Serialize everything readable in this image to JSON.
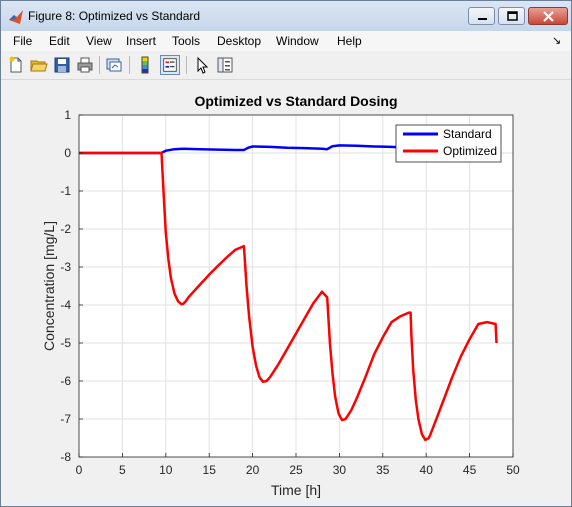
{
  "window": {
    "title": "Figure 8: Optimized vs Standard",
    "controls": [
      "minimize",
      "maximize",
      "close"
    ],
    "icons": {
      "app": "matlab-logo-icon",
      "minimize": "minimize-icon",
      "maximize": "maximize-icon",
      "close": "close-icon"
    }
  },
  "menubar": {
    "items": [
      "File",
      "Edit",
      "View",
      "Insert",
      "Tools",
      "Desktop",
      "Window",
      "Help"
    ],
    "dock_arrow": "↘"
  },
  "toolbar": {
    "buttons": [
      {
        "name": "new-figure-icon"
      },
      {
        "name": "open-file-icon"
      },
      {
        "name": "save-icon"
      },
      {
        "name": "print-icon"
      },
      {
        "name": "link-plot-icon"
      },
      {
        "name": "insert-colorbar-icon"
      },
      {
        "name": "insert-legend-icon",
        "pressed": true
      },
      {
        "name": "pointer-icon"
      },
      {
        "name": "property-inspector-icon"
      }
    ]
  },
  "chart_data": {
    "type": "line",
    "title": "Optimized vs Standard Dosing",
    "xlabel": "Time [h]",
    "ylabel": "Concentration [mg/L]",
    "xlim": [
      0,
      50
    ],
    "ylim": [
      -8,
      1
    ],
    "xticks": [
      0,
      5,
      10,
      15,
      20,
      25,
      30,
      35,
      40,
      45,
      50
    ],
    "yticks": [
      1,
      0,
      -1,
      -2,
      -3,
      -4,
      -5,
      -6,
      -7,
      -8
    ],
    "grid": true,
    "legend_position": "top-right",
    "series": [
      {
        "name": "Standard",
        "color": "#0000ff",
        "x": [
          0,
          9.5,
          10,
          11,
          12,
          14,
          16,
          18,
          19,
          19.5,
          20,
          22,
          24,
          26,
          28,
          28.6,
          29.2,
          30,
          32,
          34,
          36,
          38,
          38.4,
          38.8
        ],
        "y": [
          0,
          0,
          0.06,
          0.1,
          0.11,
          0.1,
          0.09,
          0.08,
          0.08,
          0.14,
          0.17,
          0.16,
          0.14,
          0.13,
          0.11,
          0.1,
          0.18,
          0.2,
          0.19,
          0.17,
          0.16,
          0.14,
          0.13,
          0.13
        ]
      },
      {
        "name": "Optimized",
        "color": "#ff0000",
        "x": [
          0,
          9.5,
          9.6,
          9.8,
          10,
          10.3,
          10.6,
          11,
          11.4,
          11.8,
          12,
          12.3,
          12.6,
          13,
          14,
          15,
          16,
          17,
          18,
          19,
          19.1,
          19.3,
          19.6,
          20,
          20.4,
          20.8,
          21.2,
          21.6,
          22,
          23,
          24,
          25,
          26,
          27,
          28,
          28.6,
          28.7,
          28.9,
          29.2,
          29.5,
          29.9,
          30.3,
          30.7,
          31,
          31.4,
          32,
          33,
          34,
          35,
          36,
          37,
          38,
          38.2,
          38.3,
          38.5,
          38.8,
          39.1,
          39.5,
          39.9,
          40.3,
          40.5,
          41,
          42,
          43,
          44,
          45,
          46,
          47,
          48,
          48.1
        ],
        "y": [
          0,
          0,
          -0.4,
          -1.3,
          -2.1,
          -2.8,
          -3.3,
          -3.7,
          -3.9,
          -3.98,
          -3.97,
          -3.9,
          -3.8,
          -3.7,
          -3.45,
          -3.2,
          -2.97,
          -2.75,
          -2.55,
          -2.45,
          -2.8,
          -3.5,
          -4.3,
          -5.1,
          -5.6,
          -5.9,
          -6.02,
          -6.0,
          -5.9,
          -5.55,
          -5.15,
          -4.75,
          -4.35,
          -3.95,
          -3.65,
          -3.8,
          -4.2,
          -5.0,
          -5.8,
          -6.4,
          -6.85,
          -7.03,
          -7.0,
          -6.9,
          -6.75,
          -6.45,
          -5.9,
          -5.3,
          -4.85,
          -4.45,
          -4.3,
          -4.2,
          -4.2,
          -4.8,
          -5.7,
          -6.5,
          -7.0,
          -7.4,
          -7.55,
          -7.5,
          -7.4,
          -7.1,
          -6.5,
          -5.9,
          -5.35,
          -4.9,
          -4.5,
          -4.45,
          -4.5,
          -5.0
        ]
      }
    ]
  }
}
